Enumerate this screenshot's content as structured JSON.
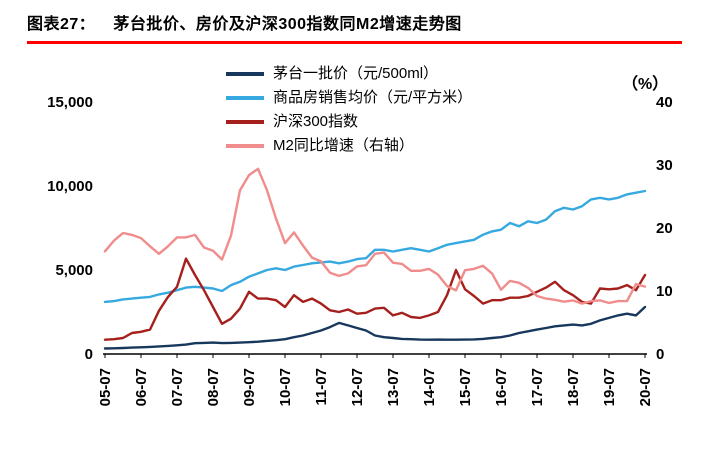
{
  "header": {
    "title_prefix": "图表27：",
    "title": "茅台批价、房价及沪深300指数同M2增速走势图",
    "underline_color": "#FF0000"
  },
  "chart_data": {
    "type": "line",
    "title": "茅台批价、房价及沪深300指数同M2增速走势图",
    "grid": false,
    "legend_position": "top-center",
    "x_tick_labels": [
      "05-07",
      "06-07",
      "07-07",
      "08-07",
      "09-07",
      "10-07",
      "11-07",
      "12-07",
      "13-07",
      "14-07",
      "15-07",
      "16-07",
      "17-07",
      "18-07",
      "19-07",
      "20-07"
    ],
    "x_sampling": "quarterly from 2005-07 to 2020-07",
    "left_axis": {
      "min": 0,
      "max": 15000,
      "tick_values": [
        0,
        5000,
        10000,
        15000
      ],
      "tick_labels": [
        "0",
        "5,000",
        "10,000",
        "15,000"
      ]
    },
    "right_axis": {
      "min": 0,
      "max": 40,
      "tick_values": [
        0,
        10,
        20,
        30,
        40
      ],
      "tick_labels": [
        "0",
        "10",
        "20",
        "30",
        "40"
      ],
      "unit_label": "（%）"
    },
    "series": [
      {
        "name": "茅台一批价（元/500ml）",
        "color": "#17375D",
        "axis": "left",
        "values": [
          330,
          340,
          360,
          380,
          400,
          420,
          450,
          480,
          520,
          560,
          640,
          660,
          680,
          650,
          660,
          680,
          700,
          730,
          780,
          820,
          880,
          1000,
          1100,
          1250,
          1400,
          1600,
          1850,
          1700,
          1550,
          1400,
          1100,
          1000,
          950,
          900,
          880,
          860,
          850,
          860,
          850,
          850,
          860,
          870,
          900,
          950,
          1000,
          1100,
          1250,
          1350,
          1450,
          1550,
          1650,
          1700,
          1750,
          1700,
          1800,
          2000,
          2150,
          2300,
          2400,
          2300,
          2800
        ]
      },
      {
        "name": "商品房销售均价（元/平方米）",
        "color": "#36A9E0",
        "axis": "left",
        "values": [
          3100,
          3150,
          3250,
          3300,
          3350,
          3400,
          3550,
          3650,
          3800,
          3950,
          4000,
          3950,
          3900,
          3750,
          4100,
          4300,
          4600,
          4800,
          5000,
          5100,
          5000,
          5200,
          5300,
          5400,
          5450,
          5500,
          5400,
          5500,
          5650,
          5700,
          6200,
          6200,
          6100,
          6200,
          6300,
          6200,
          6100,
          6300,
          6500,
          6600,
          6700,
          6800,
          7100,
          7300,
          7400,
          7800,
          7600,
          7900,
          7800,
          8000,
          8500,
          8700,
          8600,
          8800,
          9200,
          9300,
          9200,
          9300,
          9500,
          9600,
          9700
        ]
      },
      {
        "name": "沪深300指数",
        "color": "#A5201D",
        "axis": "left",
        "values": [
          850,
          880,
          950,
          1250,
          1320,
          1450,
          2580,
          3400,
          4000,
          5680,
          4700,
          3800,
          2800,
          1800,
          2100,
          2700,
          3700,
          3300,
          3300,
          3200,
          2800,
          3500,
          3100,
          3300,
          3000,
          2600,
          2500,
          2650,
          2400,
          2450,
          2700,
          2750,
          2300,
          2450,
          2200,
          2150,
          2300,
          2500,
          3500,
          5000,
          3850,
          3450,
          3000,
          3200,
          3200,
          3350,
          3350,
          3450,
          3700,
          3950,
          4300,
          3800,
          3500,
          3100,
          3000,
          3900,
          3850,
          3900,
          4100,
          3800,
          4700
        ]
      },
      {
        "name": "M2同比增速（右轴）",
        "color": "#F08C8C",
        "axis": "right",
        "values": [
          16.3,
          18.0,
          19.2,
          18.9,
          18.4,
          17.1,
          15.9,
          17.1,
          18.5,
          18.5,
          18.9,
          16.9,
          16.4,
          15.0,
          18.8,
          26.0,
          28.4,
          29.4,
          26.0,
          21.5,
          17.6,
          19.3,
          17.2,
          15.3,
          14.7,
          12.9,
          12.4,
          12.8,
          13.9,
          14.1,
          15.9,
          16.1,
          14.5,
          14.3,
          13.2,
          13.2,
          13.5,
          12.6,
          10.8,
          10.1,
          13.3,
          13.5,
          14.0,
          12.8,
          10.2,
          11.6,
          11.3,
          10.5,
          9.2,
          8.8,
          8.6,
          8.3,
          8.5,
          8.0,
          8.4,
          8.5,
          8.1,
          8.4,
          8.4,
          11.1,
          10.7
        ]
      }
    ]
  }
}
